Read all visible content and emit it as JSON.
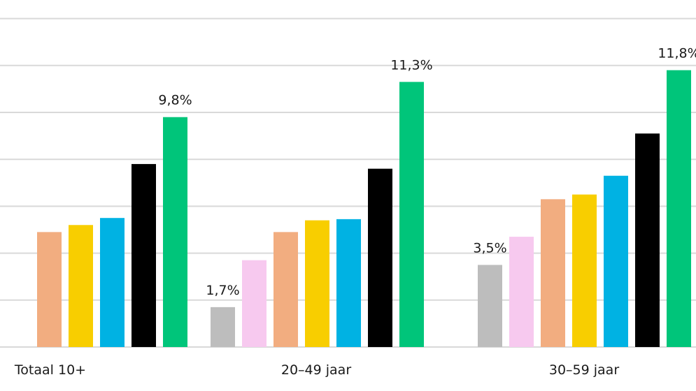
{
  "chart_data": {
    "type": "bar",
    "categories": [
      "Totaal 10+",
      "20–49 jaar",
      "30–59 jaar"
    ],
    "colors": [
      "#bdbdbd",
      "#f7c9ef",
      "#f2ad80",
      "#f8ce00",
      "#00b2e3",
      "#000000",
      "#00c57a"
    ],
    "series_values": [
      [
        null,
        1.7,
        3.5
      ],
      [
        null,
        3.7,
        4.7
      ],
      [
        4.9,
        4.9,
        6.3
      ],
      [
        5.2,
        5.4,
        6.5
      ],
      [
        5.5,
        5.45,
        7.3
      ],
      [
        7.8,
        7.6,
        9.1
      ],
      [
        9.8,
        11.3,
        11.8
      ]
    ],
    "data_labels": [
      [
        "",
        "1,7%",
        "3,5%"
      ],
      [
        "",
        "",
        ""
      ],
      [
        "",
        "",
        ""
      ],
      [
        "",
        "",
        ""
      ],
      [
        "",
        "",
        ""
      ],
      [
        "",
        "",
        ""
      ],
      [
        "9,8%",
        "11,3%",
        "11,8%"
      ]
    ],
    "ylim": [
      0,
      14
    ],
    "grid": true,
    "legend": "none"
  }
}
